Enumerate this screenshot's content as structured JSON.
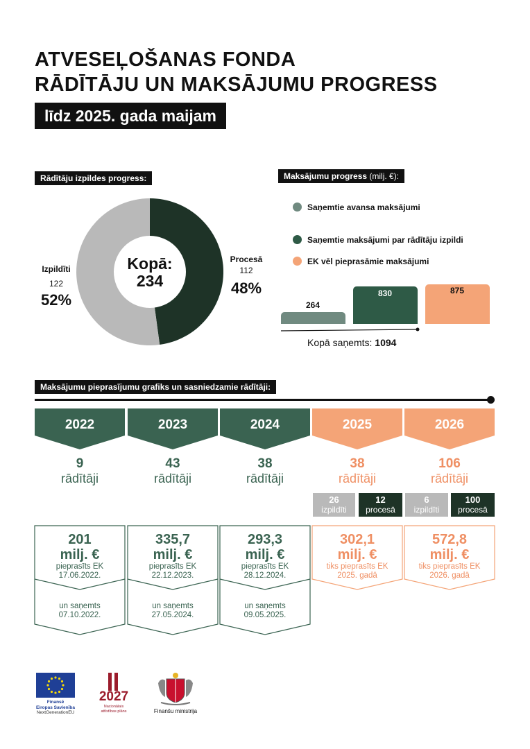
{
  "header": {
    "title_line1": "ATVESEĻOŠANAS FONDA",
    "title_line2": "RĀDĪTĀJU UN MAKSĀJUMU PROGRESS",
    "subtitle": "līdz 2025. gada maijam"
  },
  "indicators": {
    "heading": "Rādītāju izpildes progress:",
    "center_label": "Kopā:",
    "center_value": "234",
    "done_label": "Izpildīti",
    "done_count": "122",
    "done_pct": "52%",
    "progress_label": "Procesā",
    "progress_count": "112",
    "progress_pct": "48%",
    "values": [
      122,
      112
    ],
    "colors": [
      "#b9b9b9",
      "#1e3327"
    ]
  },
  "payments": {
    "heading": "Maksājumu progress",
    "heading_unit": "(milj. €):",
    "legend": [
      {
        "label": "Saņemtie avansa maksājumi",
        "color": "#708a80"
      },
      {
        "label": "Saņemtie maksājumi par rādītāju izpildi",
        "color": "#2e5a46"
      },
      {
        "label": "EK vēl pieprasāmie maksājumi",
        "color": "#f4a477"
      }
    ],
    "bars": [
      {
        "label": "264",
        "value": 264,
        "color": "#708a80"
      },
      {
        "label": "830",
        "value": 830,
        "color": "#2e5a46"
      },
      {
        "label": "875",
        "value": 875,
        "color": "#f4a477"
      }
    ],
    "total_label": "Kopā saņemts:",
    "total_value": "1094"
  },
  "schedule": {
    "heading": "Maksājumu pieprasījumu grafiks un sasniedzamie rādītāji:",
    "years": [
      {
        "year": "2022",
        "count": "9",
        "count_label": "rādītāji",
        "amount": "201",
        "unit": "milj. €",
        "req1": "pieprasīts EK",
        "req2": "17.06.2022.",
        "rec1": "un saņemts",
        "rec2": "07.10.2022."
      },
      {
        "year": "2023",
        "count": "43",
        "count_label": "rādītāji",
        "amount": "335,7",
        "unit": "milj. €",
        "req1": "pieprasīts EK",
        "req2": "22.12.2023.",
        "rec1": "un saņemts",
        "rec2": "27.05.2024."
      },
      {
        "year": "2024",
        "count": "38",
        "count_label": "rādītāji",
        "amount": "293,3",
        "unit": "milj. €",
        "req1": "pieprasīts EK",
        "req2": "28.12.2024.",
        "rec1": "un saņemts",
        "rec2": "09.05.2025."
      },
      {
        "year": "2025",
        "count": "38",
        "count_label": "rādītāji",
        "amount": "302,1",
        "unit": "milj. €",
        "req1": "tiks pieprasīts EK",
        "req2": "2025. gadā",
        "done_n": "26",
        "done_l": "izpildīti",
        "proc_n": "12",
        "proc_l": "procesā"
      },
      {
        "year": "2026",
        "count": "106",
        "count_label": "rādītāji",
        "amount": "572,8",
        "unit": "milj. €",
        "req1": "tiks pieprasīts EK",
        "req2": "2026. gadā",
        "done_n": "6",
        "done_l": "izpildīti",
        "proc_n": "100",
        "proc_l": "procesā"
      }
    ]
  },
  "footer": {
    "eu_line1": "Finansē",
    "eu_line2": "Eiropas Savienība",
    "eu_line3": "NextGenerationEU",
    "plan_year": "2027",
    "plan_line1": "Nacionālais",
    "plan_line2": "attīstības plāns",
    "ministry": "Finanšu ministrija"
  },
  "colors": {
    "dark_green": "#3a6351",
    "orange": "#f4a477",
    "orange_text": "#ef8f63",
    "grey": "#b9b9b9"
  }
}
